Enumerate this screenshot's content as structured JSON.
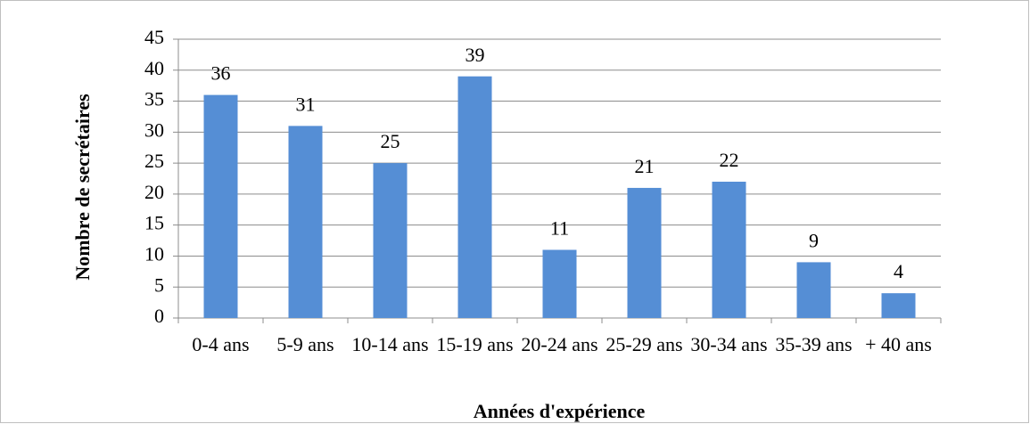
{
  "chart_data": {
    "type": "bar",
    "x_label": "Années d'expérience",
    "y_label": "Nombre de secrétaires",
    "categories": [
      "0-4 ans",
      "5-9 ans",
      "10-14 ans",
      "15-19 ans",
      "20-24 ans",
      "25-29 ans",
      "30-34 ans",
      "35-39 ans",
      "+ 40 ans"
    ],
    "values": [
      36,
      31,
      25,
      39,
      11,
      21,
      22,
      9,
      4
    ],
    "color": "#558ed5",
    "ylim": [
      0,
      45
    ],
    "yticks": [
      0,
      5,
      10,
      15,
      20,
      25,
      30,
      35,
      40,
      45
    ],
    "grid": true
  }
}
